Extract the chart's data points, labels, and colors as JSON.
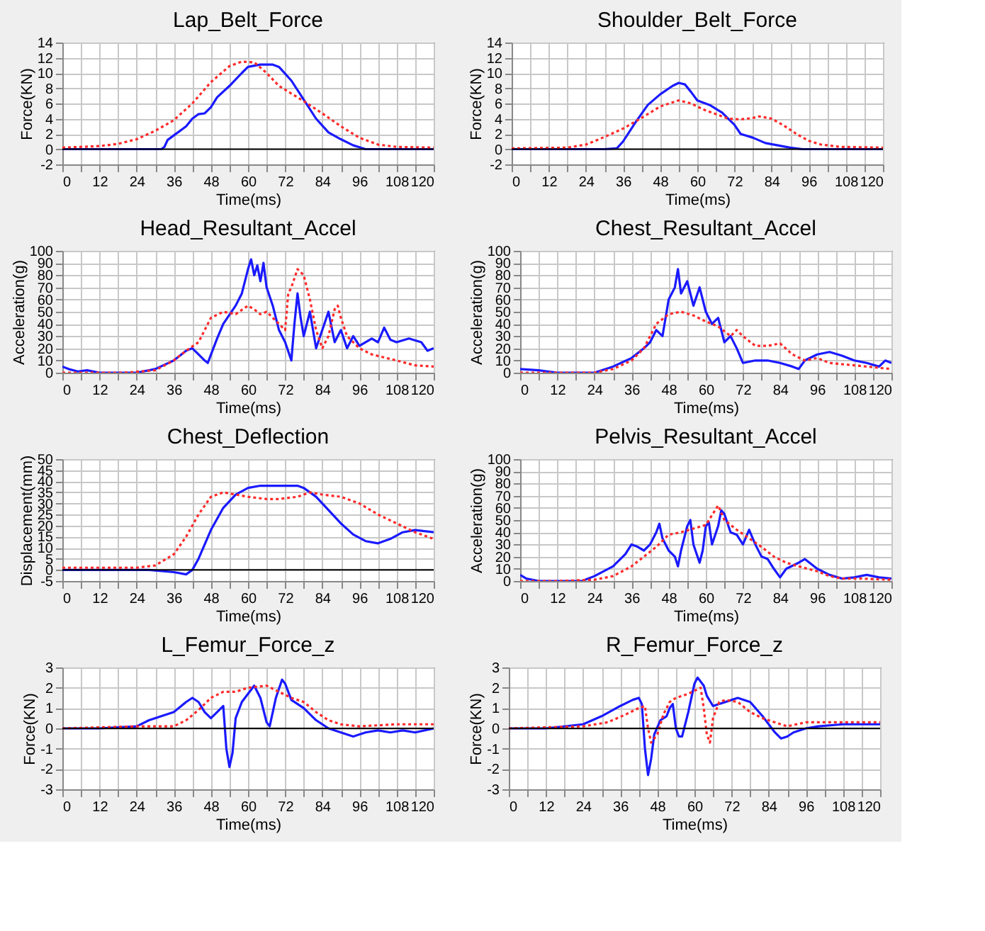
{
  "chart_data": [
    {
      "type": "line",
      "title": "Lap_Belt_Force",
      "xlabel": "Time(ms)",
      "ylabel": "Force(KN)",
      "xlim": [
        0,
        120
      ],
      "ylim": [
        -2,
        14
      ],
      "yticks": [
        -2,
        0,
        2,
        4,
        6,
        8,
        10,
        12,
        14
      ],
      "xticks": [
        0,
        {
          "value": 6,
          "label": null
        },
        12,
        {
          "value": 18,
          "label": null
        },
        24,
        {
          "value": 30,
          "label": null
        },
        36,
        {
          "value": 42,
          "label": null
        },
        48,
        {
          "value": 54,
          "label": null
        },
        60,
        {
          "value": 66,
          "label": null
        },
        72,
        {
          "value": 78,
          "label": null
        },
        84,
        {
          "value": 90,
          "label": null
        },
        96,
        {
          "value": 102,
          "label": null
        },
        108,
        {
          "value": 114,
          "label": null
        },
        120
      ],
      "grid": true,
      "legend": false,
      "ref_lines": [
        {
          "axis": "y",
          "value": 0,
          "color": "#000000"
        }
      ],
      "series": [
        {
          "color": "#1a1aff",
          "line_style": "solid",
          "x": [
            0,
            32,
            33,
            34,
            36,
            40,
            42,
            44,
            46,
            48,
            50,
            54,
            58,
            60,
            64,
            68,
            70,
            74,
            78,
            82,
            86,
            90,
            94,
            98,
            120
          ],
          "values": [
            0,
            0,
            0.3,
            1.2,
            1.8,
            3,
            4,
            4.6,
            4.7,
            5.5,
            6.8,
            8.3,
            10,
            10.8,
            11.1,
            11.1,
            10.8,
            9,
            6.5,
            4,
            2.2,
            1.3,
            0.5,
            0,
            0
          ]
        },
        {
          "color": "#ff2a2a",
          "line_style": "dotted",
          "x": [
            0,
            12,
            18,
            24,
            30,
            36,
            42,
            48,
            54,
            58,
            62,
            66,
            70,
            74,
            78,
            84,
            90,
            96,
            102,
            108,
            120
          ],
          "values": [
            0.2,
            0.4,
            0.7,
            1.3,
            2.4,
            3.8,
            6,
            8.8,
            10.9,
            11.5,
            11.4,
            10,
            8.3,
            7.3,
            6.3,
            4.7,
            3,
            1.5,
            0.6,
            0.3,
            0.2
          ]
        }
      ]
    },
    {
      "type": "line",
      "title": "Shoulder_Belt_Force",
      "xlabel": "Time(ms)",
      "ylabel": "Force(KN)",
      "xlim": [
        0,
        120
      ],
      "ylim": [
        -2,
        14
      ],
      "yticks": [
        -2,
        0,
        2,
        4,
        6,
        8,
        10,
        12,
        14
      ],
      "xticks": [
        0,
        {
          "value": 6,
          "label": null
        },
        12,
        {
          "value": 18,
          "label": null
        },
        24,
        {
          "value": 30,
          "label": null
        },
        36,
        {
          "value": 42,
          "label": null
        },
        48,
        {
          "value": 54,
          "label": null
        },
        60,
        {
          "value": 66,
          "label": null
        },
        72,
        {
          "value": 78,
          "label": null
        },
        84,
        {
          "value": 90,
          "label": null
        },
        96,
        {
          "value": 102,
          "label": null
        },
        108,
        {
          "value": 114,
          "label": null
        },
        120
      ],
      "grid": true,
      "legend": false,
      "ref_lines": [
        {
          "axis": "y",
          "value": 0,
          "color": "#000000"
        }
      ],
      "series": [
        {
          "color": "#1a1aff",
          "line_style": "solid",
          "x": [
            0,
            24,
            30,
            34,
            36,
            40,
            44,
            48,
            52,
            54,
            56,
            58,
            60,
            64,
            68,
            72,
            74,
            78,
            82,
            86,
            90,
            94,
            120
          ],
          "values": [
            0,
            0,
            0,
            0.1,
            1,
            3.5,
            5.8,
            7.2,
            8.3,
            8.7,
            8.5,
            7.5,
            6.4,
            5.8,
            4.8,
            3.2,
            2,
            1.5,
            0.8,
            0.5,
            0.2,
            0,
            0
          ]
        },
        {
          "color": "#ff2a2a",
          "line_style": "dotted",
          "x": [
            0,
            18,
            24,
            30,
            36,
            42,
            48,
            54,
            58,
            62,
            66,
            70,
            74,
            78,
            80,
            84,
            88,
            92,
            96,
            100,
            106,
            120
          ],
          "values": [
            0.1,
            0.2,
            0.6,
            1.6,
            2.7,
            4.1,
            5.6,
            6.4,
            6,
            5.2,
            4.6,
            4,
            3.9,
            4.1,
            4.3,
            4,
            3.1,
            2,
            1.1,
            0.6,
            0.3,
            0.2
          ]
        }
      ]
    },
    {
      "type": "line",
      "title": "Head_Resultant_Accel",
      "xlabel": "Time(ms)",
      "ylabel": "Acceleration(g)",
      "xlim": [
        0,
        120
      ],
      "ylim": [
        0,
        100
      ],
      "yticks": [
        0,
        10,
        20,
        30,
        40,
        50,
        60,
        70,
        80,
        90,
        100
      ],
      "xticks": [
        0,
        {
          "value": 6,
          "label": null
        },
        12,
        {
          "value": 18,
          "label": null
        },
        24,
        {
          "value": 30,
          "label": null
        },
        36,
        {
          "value": 42,
          "label": null
        },
        48,
        {
          "value": 54,
          "label": null
        },
        60,
        {
          "value": 66,
          "label": null
        },
        72,
        {
          "value": 78,
          "label": null
        },
        84,
        {
          "value": 90,
          "label": null
        },
        96,
        {
          "value": 102,
          "label": null
        },
        108,
        {
          "value": 114,
          "label": null
        },
        120
      ],
      "grid": true,
      "legend": false,
      "series": [
        {
          "color": "#1a1aff",
          "line_style": "solid",
          "x": [
            0,
            2,
            5,
            8,
            12,
            24,
            30,
            36,
            40,
            42,
            44,
            46,
            47,
            50,
            52,
            56,
            58,
            60,
            61,
            62,
            63,
            64,
            65,
            66,
            68,
            70,
            72,
            74,
            75,
            76,
            77,
            78,
            80,
            82,
            84,
            86,
            88,
            90,
            92,
            94,
            96,
            100,
            102,
            104,
            106,
            108,
            112,
            116,
            118,
            120
          ],
          "values": [
            5,
            3,
            1,
            2,
            0,
            0,
            3,
            10,
            18,
            20,
            15,
            10,
            8,
            28,
            40,
            55,
            65,
            85,
            93,
            80,
            88,
            75,
            90,
            70,
            55,
            35,
            25,
            10,
            40,
            65,
            45,
            30,
            50,
            20,
            35,
            50,
            25,
            35,
            20,
            30,
            22,
            28,
            25,
            37,
            27,
            25,
            28,
            25,
            18,
            20
          ]
        },
        {
          "color": "#ff2a2a",
          "line_style": "dotted",
          "x": [
            0,
            20,
            30,
            36,
            40,
            44,
            48,
            52,
            56,
            60,
            62,
            64,
            66,
            68,
            70,
            72,
            73,
            74,
            76,
            78,
            80,
            82,
            84,
            86,
            88,
            89,
            90,
            92,
            96,
            100,
            108,
            114,
            120
          ],
          "values": [
            0,
            0,
            2,
            10,
            18,
            25,
            45,
            50,
            48,
            55,
            52,
            48,
            50,
            45,
            40,
            35,
            65,
            70,
            85,
            80,
            60,
            35,
            20,
            30,
            52,
            55,
            45,
            30,
            20,
            15,
            10,
            6,
            5
          ]
        }
      ]
    },
    {
      "type": "line",
      "title": "Chest_Resultant_Accel",
      "xlabel": "Time(ms)",
      "ylabel": "Acceleration(g)",
      "xlim": [
        0,
        120
      ],
      "ylim": [
        0,
        100
      ],
      "yticks": [
        0,
        10,
        20,
        30,
        40,
        50,
        60,
        70,
        80,
        90,
        100
      ],
      "xticks": [
        0,
        {
          "value": 6,
          "label": null
        },
        12,
        {
          "value": 18,
          "label": null
        },
        24,
        {
          "value": 30,
          "label": null
        },
        36,
        {
          "value": 42,
          "label": null
        },
        48,
        {
          "value": 54,
          "label": null
        },
        60,
        {
          "value": 66,
          "label": null
        },
        72,
        {
          "value": 78,
          "label": null
        },
        84,
        {
          "value": 90,
          "label": null
        },
        96,
        {
          "value": 102,
          "label": null
        },
        108,
        {
          "value": 114,
          "label": null
        },
        120
      ],
      "grid": true,
      "legend": false,
      "series": [
        {
          "color": "#1a1aff",
          "line_style": "solid",
          "x": [
            0,
            6,
            12,
            24,
            30,
            36,
            40,
            42,
            44,
            46,
            48,
            50,
            51,
            52,
            54,
            56,
            58,
            60,
            62,
            64,
            66,
            68,
            70,
            72,
            76,
            80,
            84,
            88,
            90,
            92,
            96,
            100,
            104,
            108,
            112,
            116,
            118,
            120
          ],
          "values": [
            3,
            2,
            0,
            0,
            5,
            12,
            20,
            25,
            35,
            30,
            60,
            70,
            85,
            65,
            75,
            55,
            70,
            50,
            40,
            45,
            25,
            30,
            20,
            8,
            10,
            10,
            8,
            5,
            3,
            10,
            15,
            17,
            14,
            10,
            8,
            5,
            10,
            8
          ]
        },
        {
          "color": "#ff2a2a",
          "line_style": "dotted",
          "x": [
            0,
            24,
            30,
            36,
            40,
            44,
            48,
            52,
            56,
            60,
            64,
            68,
            70,
            72,
            76,
            80,
            84,
            88,
            92,
            96,
            100,
            108,
            120
          ],
          "values": [
            0,
            0,
            3,
            10,
            20,
            40,
            48,
            50,
            47,
            42,
            38,
            30,
            35,
            30,
            22,
            22,
            24,
            15,
            10,
            12,
            8,
            6,
            3
          ]
        }
      ]
    },
    {
      "type": "line",
      "title": "Chest_Deflection",
      "xlabel": "Time(ms)",
      "ylabel": "Displacement(mm)",
      "xlim": [
        0,
        120
      ],
      "ylim": [
        -5,
        50
      ],
      "yticks": [
        -5,
        0,
        5,
        10,
        15,
        20,
        25,
        30,
        35,
        40,
        45,
        50
      ],
      "xticks": [
        0,
        {
          "value": 6,
          "label": null
        },
        12,
        {
          "value": 18,
          "label": null
        },
        24,
        {
          "value": 30,
          "label": null
        },
        36,
        {
          "value": 42,
          "label": null
        },
        48,
        {
          "value": 54,
          "label": null
        },
        60,
        {
          "value": 66,
          "label": null
        },
        72,
        {
          "value": 78,
          "label": null
        },
        84,
        {
          "value": 90,
          "label": null
        },
        96,
        {
          "value": 102,
          "label": null
        },
        108,
        {
          "value": 114,
          "label": null
        },
        120
      ],
      "grid": true,
      "legend": false,
      "ref_lines": [
        {
          "axis": "y",
          "value": 0,
          "color": "#000000"
        }
      ],
      "series": [
        {
          "color": "#1a1aff",
          "line_style": "solid",
          "x": [
            0,
            28,
            36,
            40,
            42,
            44,
            48,
            52,
            56,
            60,
            64,
            68,
            72,
            76,
            78,
            82,
            86,
            90,
            94,
            98,
            102,
            106,
            110,
            114,
            120
          ],
          "values": [
            0,
            0,
            -1,
            -2,
            0,
            5,
            18,
            28,
            34,
            37,
            38,
            38,
            38,
            38,
            37,
            33,
            27,
            21,
            16,
            13,
            12,
            14,
            17,
            18,
            17
          ]
        },
        {
          "color": "#ff2a2a",
          "line_style": "dotted",
          "x": [
            0,
            24,
            30,
            36,
            40,
            44,
            48,
            52,
            56,
            60,
            66,
            70,
            76,
            80,
            84,
            90,
            96,
            102,
            108,
            114,
            120
          ],
          "values": [
            1,
            1,
            2,
            7,
            15,
            25,
            33,
            35,
            34,
            33,
            32,
            32,
            33,
            35,
            34,
            33,
            30,
            25,
            21,
            17,
            14
          ]
        }
      ]
    },
    {
      "type": "line",
      "title": "Pelvis_Resultant_Accel",
      "xlabel": "Time(ms)",
      "ylabel": "Acceleration(g)",
      "xlim": [
        0,
        120
      ],
      "ylim": [
        0,
        100
      ],
      "yticks": [
        0,
        10,
        20,
        30,
        40,
        50,
        60,
        70,
        80,
        90,
        100
      ],
      "xticks": [
        0,
        {
          "value": 6,
          "label": null
        },
        12,
        {
          "value": 18,
          "label": null
        },
        24,
        {
          "value": 30,
          "label": null
        },
        36,
        {
          "value": 42,
          "label": null
        },
        48,
        {
          "value": 54,
          "label": null
        },
        60,
        {
          "value": 66,
          "label": null
        },
        72,
        {
          "value": 78,
          "label": null
        },
        84,
        {
          "value": 90,
          "label": null
        },
        96,
        {
          "value": 102,
          "label": null
        },
        108,
        {
          "value": 114,
          "label": null
        },
        120
      ],
      "grid": true,
      "legend": false,
      "series": [
        {
          "color": "#1a1aff",
          "line_style": "solid",
          "x": [
            0,
            2,
            6,
            20,
            24,
            30,
            34,
            36,
            38,
            40,
            42,
            44,
            45,
            46,
            48,
            50,
            51,
            52,
            54,
            55,
            56,
            58,
            59,
            60,
            61,
            62,
            64,
            65,
            66,
            68,
            70,
            72,
            74,
            76,
            78,
            80,
            82,
            84,
            86,
            90,
            92,
            96,
            100,
            104,
            108,
            112,
            116,
            120
          ],
          "values": [
            5,
            2,
            0,
            0,
            4,
            12,
            22,
            30,
            28,
            25,
            30,
            40,
            47,
            35,
            25,
            20,
            12,
            25,
            45,
            50,
            30,
            15,
            25,
            45,
            48,
            30,
            45,
            58,
            55,
            40,
            38,
            30,
            42,
            30,
            20,
            18,
            10,
            3,
            10,
            15,
            18,
            10,
            5,
            2,
            3,
            5,
            3,
            2
          ]
        },
        {
          "color": "#ff2a2a",
          "line_style": "dotted",
          "x": [
            0,
            12,
            24,
            30,
            36,
            40,
            44,
            48,
            52,
            56,
            60,
            63,
            64,
            66,
            70,
            74,
            78,
            82,
            86,
            90,
            96,
            100,
            104,
            110,
            120
          ],
          "values": [
            0,
            0,
            1,
            4,
            12,
            20,
            28,
            38,
            40,
            43,
            46,
            58,
            62,
            50,
            42,
            35,
            28,
            20,
            15,
            12,
            8,
            4,
            2,
            2,
            1
          ]
        }
      ]
    },
    {
      "type": "line",
      "title": "L_Femur_Force_z",
      "xlabel": "Time(ms)",
      "ylabel": "Force(KN)",
      "xlim": [
        0,
        120
      ],
      "ylim": [
        -3,
        3
      ],
      "yticks": [
        -3,
        -2,
        -1,
        0,
        1,
        2,
        3
      ],
      "xticks": [
        0,
        {
          "value": 6,
          "label": null
        },
        12,
        {
          "value": 18,
          "label": null
        },
        24,
        {
          "value": 30,
          "label": null
        },
        36,
        {
          "value": 42,
          "label": null
        },
        48,
        {
          "value": 54,
          "label": null
        },
        60,
        {
          "value": 66,
          "label": null
        },
        72,
        {
          "value": 78,
          "label": null
        },
        84,
        {
          "value": 90,
          "label": null
        },
        96,
        {
          "value": 102,
          "label": null
        },
        108,
        {
          "value": 114,
          "label": null
        },
        120
      ],
      "grid": true,
      "legend": false,
      "ref_lines": [
        {
          "axis": "y",
          "value": 0,
          "color": "#000000"
        }
      ],
      "series": [
        {
          "color": "#1a1aff",
          "line_style": "solid",
          "x": [
            0,
            12,
            24,
            28,
            32,
            36,
            40,
            42,
            44,
            46,
            48,
            50,
            52,
            53,
            54,
            55,
            56,
            58,
            60,
            62,
            64,
            66,
            67,
            69,
            71,
            72,
            74,
            78,
            82,
            86,
            90,
            94,
            98,
            102,
            106,
            110,
            114,
            120
          ],
          "values": [
            0,
            0,
            0.1,
            0.4,
            0.6,
            0.8,
            1.3,
            1.5,
            1.3,
            0.8,
            0.5,
            0.8,
            1.1,
            -1,
            -1.9,
            -1.2,
            0.5,
            1.3,
            1.7,
            2.1,
            1.5,
            0.3,
            0.1,
            1.5,
            2.4,
            2.2,
            1.4,
            1,
            0.4,
            0,
            -0.2,
            -0.4,
            -0.2,
            -0.1,
            -0.2,
            -0.1,
            -0.2,
            0
          ]
        },
        {
          "color": "#ff2a2a",
          "line_style": "dotted",
          "x": [
            0,
            24,
            36,
            40,
            44,
            48,
            52,
            56,
            60,
            66,
            70,
            74,
            78,
            82,
            86,
            90,
            96,
            108,
            120
          ],
          "values": [
            0,
            0.1,
            0.1,
            0.4,
            0.9,
            1.5,
            1.8,
            1.8,
            2,
            2.1,
            1.8,
            1.5,
            1.3,
            0.8,
            0.4,
            0.2,
            0.1,
            0.2,
            0.2
          ]
        }
      ]
    },
    {
      "type": "line",
      "title": "R_Femur_Force_z",
      "xlabel": "Time(ms)",
      "ylabel": "Force(KN)",
      "xlim": [
        0,
        120
      ],
      "ylim": [
        -3,
        3
      ],
      "yticks": [
        -3,
        -2,
        -1,
        0,
        1,
        2,
        3
      ],
      "xticks": [
        0,
        {
          "value": 6,
          "label": null
        },
        12,
        {
          "value": 18,
          "label": null
        },
        24,
        {
          "value": 30,
          "label": null
        },
        36,
        {
          "value": 42,
          "label": null
        },
        48,
        {
          "value": 54,
          "label": null
        },
        60,
        {
          "value": 66,
          "label": null
        },
        72,
        {
          "value": 78,
          "label": null
        },
        84,
        {
          "value": 90,
          "label": null
        },
        96,
        {
          "value": 102,
          "label": null
        },
        108,
        {
          "value": 114,
          "label": null
        },
        120
      ],
      "grid": true,
      "legend": false,
      "ref_lines": [
        {
          "axis": "y",
          "value": 0,
          "color": "#000000"
        }
      ],
      "series": [
        {
          "color": "#1a1aff",
          "line_style": "solid",
          "x": [
            0,
            12,
            24,
            30,
            36,
            40,
            42,
            43,
            44,
            45,
            46,
            47,
            49,
            51,
            52,
            53,
            54,
            55,
            56,
            58,
            60,
            61,
            63,
            64,
            66,
            68,
            72,
            74,
            78,
            82,
            86,
            88,
            90,
            92,
            96,
            100,
            108,
            120
          ],
          "values": [
            0,
            0,
            0.2,
            0.6,
            1.1,
            1.4,
            1.5,
            1.2,
            -1,
            -2.3,
            -1.5,
            -0.3,
            0.4,
            0.6,
            1,
            1.2,
            0,
            -0.4,
            -0.4,
            0.8,
            2.2,
            2.5,
            2.1,
            1.6,
            1.1,
            1.2,
            1.4,
            1.5,
            1.3,
            0.6,
            -0.2,
            -0.5,
            -0.4,
            -0.2,
            0,
            0.1,
            0.2,
            0.2
          ]
        },
        {
          "color": "#ff2a2a",
          "line_style": "dotted",
          "x": [
            0,
            24,
            32,
            38,
            42,
            44,
            45,
            46,
            48,
            50,
            52,
            54,
            58,
            62,
            63,
            64,
            65,
            66,
            68,
            70,
            74,
            78,
            82,
            86,
            90,
            96,
            108,
            120
          ],
          "values": [
            0,
            0.1,
            0.3,
            0.7,
            1,
            1.1,
            0,
            -0.7,
            -0.3,
            0.7,
            1.3,
            1.5,
            1.7,
            2,
            1,
            -0.3,
            -0.7,
            0.5,
            1.3,
            1.4,
            1.3,
            0.8,
            0.5,
            0.3,
            0.1,
            0.3,
            0.3,
            0.3
          ]
        }
      ]
    }
  ]
}
